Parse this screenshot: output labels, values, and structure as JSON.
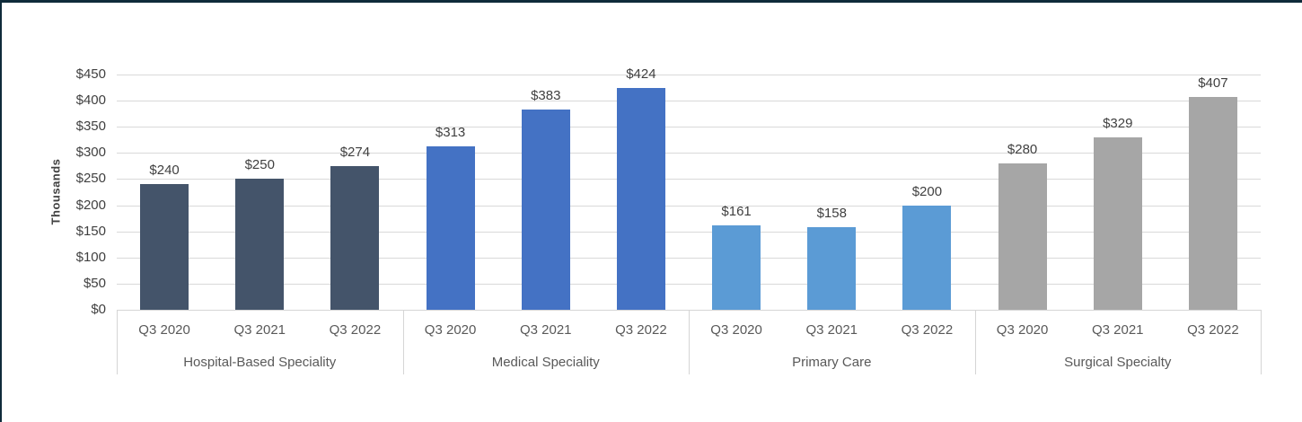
{
  "colors": {
    "frame_border": "#0f2b3a",
    "gridline": "#d9d9d9",
    "axis_line": "#d5d5d5",
    "tick_text": "#404040",
    "value_label_text": "#404040",
    "category_text": "#595959"
  },
  "chart_data": {
    "type": "bar",
    "title": "",
    "ylabel": "Thousands",
    "xlabel": "",
    "value_prefix": "$",
    "ylim": [
      0,
      450
    ],
    "ytick_step": 50,
    "ytick_labels": [
      "$450",
      "$400",
      "$350",
      "$300",
      "$250",
      "$200",
      "$150",
      "$100",
      "$50",
      "$0"
    ],
    "grid": true,
    "legend_position": "none",
    "categories": [
      "Q3 2020",
      "Q3 2021",
      "Q3 2022"
    ],
    "groups": [
      {
        "label": "Hospital-Based Speciality",
        "color": "#44546a",
        "categories": [
          "Q3 2020",
          "Q3 2021",
          "Q3 2022"
        ],
        "values": [
          240,
          250,
          274
        ],
        "data_labels": [
          "$240",
          "$250",
          "$274"
        ]
      },
      {
        "label": "Medical Speciality",
        "color": "#4472c4",
        "categories": [
          "Q3 2020",
          "Q3 2021",
          "Q3 2022"
        ],
        "values": [
          313,
          383,
          424
        ],
        "data_labels": [
          "$313",
          "$383",
          "$424"
        ]
      },
      {
        "label": "Primary Care",
        "color": "#5b9bd5",
        "categories": [
          "Q3 2020",
          "Q3 2021",
          "Q3 2022"
        ],
        "values": [
          161,
          158,
          200
        ],
        "data_labels": [
          "$161",
          "$158",
          "$200"
        ]
      },
      {
        "label": "Surgical Specialty",
        "color": "#a6a6a6",
        "categories": [
          "Q3 2020",
          "Q3 2021",
          "Q3 2022"
        ],
        "values": [
          280,
          329,
          407
        ],
        "data_labels": [
          "$280",
          "$329",
          "$407"
        ]
      }
    ]
  }
}
